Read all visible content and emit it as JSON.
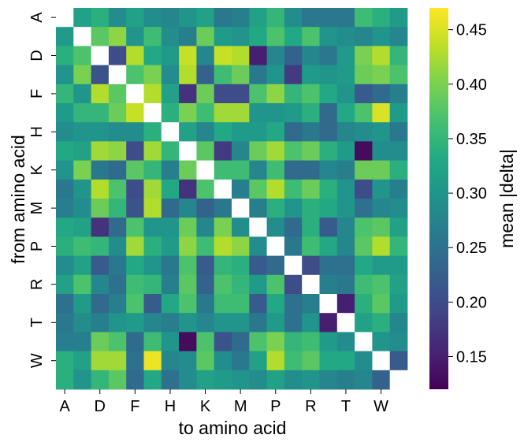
{
  "chart_data": {
    "type": "heatmap",
    "title": "",
    "xlabel": "to amino acid",
    "ylabel": "from amino acid",
    "colorbar_label": "mean |delta|",
    "colormap": "viridis",
    "amino_acids": [
      "A",
      "C",
      "D",
      "E",
      "F",
      "G",
      "H",
      "I",
      "K",
      "L",
      "M",
      "N",
      "P",
      "Q",
      "R",
      "S",
      "T",
      "V",
      "W",
      "Y"
    ],
    "x_tick_labels": [
      "A",
      "D",
      "F",
      "H",
      "K",
      "M",
      "P",
      "R",
      "T",
      "W"
    ],
    "y_tick_labels": [
      "A",
      "D",
      "F",
      "H",
      "K",
      "M",
      "P",
      "R",
      "T",
      "W"
    ],
    "diagonal": "white (no value)",
    "vmin": 0.12,
    "vmax": 0.47,
    "colorbar_ticks": [
      "0.15",
      "0.20",
      "0.25",
      "0.30",
      "0.35",
      "0.40",
      "0.45"
    ],
    "matrix": [
      [
        null,
        0.32,
        0.34,
        0.29,
        0.32,
        0.29,
        0.28,
        0.3,
        0.32,
        0.26,
        0.27,
        0.32,
        0.35,
        0.29,
        0.26,
        0.26,
        0.26,
        0.36,
        0.34,
        0.31
      ],
      [
        0.31,
        null,
        0.38,
        0.41,
        0.3,
        0.36,
        0.29,
        0.27,
        0.39,
        0.31,
        0.3,
        0.33,
        0.37,
        0.33,
        0.37,
        0.3,
        0.29,
        0.28,
        0.3,
        0.28
      ],
      [
        0.34,
        0.37,
        null,
        0.2,
        0.43,
        0.33,
        0.31,
        0.44,
        0.28,
        0.44,
        0.43,
        0.15,
        0.28,
        0.23,
        0.28,
        0.26,
        0.31,
        0.4,
        0.43,
        0.35
      ],
      [
        0.3,
        0.4,
        0.21,
        null,
        0.37,
        0.4,
        0.29,
        0.43,
        0.23,
        0.36,
        0.39,
        0.26,
        0.3,
        0.18,
        0.31,
        0.3,
        0.31,
        0.39,
        0.4,
        0.37
      ],
      [
        0.35,
        0.3,
        0.43,
        0.38,
        null,
        0.43,
        0.32,
        0.17,
        0.39,
        0.2,
        0.2,
        0.37,
        0.41,
        0.35,
        0.37,
        0.33,
        0.3,
        0.22,
        0.24,
        0.27
      ],
      [
        0.31,
        0.35,
        0.35,
        0.39,
        0.44,
        null,
        0.34,
        0.4,
        0.36,
        0.42,
        0.42,
        0.3,
        0.3,
        0.31,
        0.34,
        0.24,
        0.33,
        0.37,
        0.45,
        0.31
      ],
      [
        0.29,
        0.3,
        0.3,
        0.29,
        0.29,
        0.34,
        null,
        0.32,
        0.28,
        0.33,
        0.31,
        0.31,
        0.33,
        0.24,
        0.26,
        0.24,
        0.28,
        0.29,
        0.3,
        0.26
      ],
      [
        0.33,
        0.32,
        0.42,
        0.41,
        0.2,
        0.42,
        0.35,
        null,
        0.38,
        0.18,
        0.28,
        0.39,
        0.42,
        0.37,
        0.39,
        0.34,
        0.31,
        0.13,
        0.29,
        0.29
      ],
      [
        0.3,
        0.4,
        0.26,
        0.24,
        0.38,
        0.35,
        0.27,
        0.39,
        null,
        0.36,
        0.36,
        0.28,
        0.36,
        0.24,
        0.24,
        0.28,
        0.27,
        0.39,
        0.39,
        0.34
      ],
      [
        0.26,
        0.3,
        0.43,
        0.37,
        0.2,
        0.42,
        0.33,
        0.17,
        0.37,
        null,
        0.27,
        0.38,
        0.43,
        0.36,
        0.39,
        0.34,
        0.3,
        0.2,
        0.3,
        0.27
      ],
      [
        0.27,
        0.29,
        0.39,
        0.35,
        0.21,
        0.43,
        0.24,
        0.28,
        0.23,
        0.26,
        null,
        0.27,
        0.34,
        0.3,
        0.34,
        0.33,
        0.3,
        0.25,
        0.28,
        0.29
      ],
      [
        0.33,
        0.32,
        0.17,
        0.24,
        0.37,
        0.3,
        0.3,
        0.39,
        0.28,
        0.4,
        0.29,
        null,
        0.29,
        0.24,
        0.34,
        0.22,
        0.28,
        0.37,
        0.38,
        0.32
      ],
      [
        0.34,
        0.36,
        0.35,
        0.29,
        0.42,
        0.34,
        0.31,
        0.41,
        0.36,
        0.43,
        0.41,
        0.29,
        null,
        0.26,
        0.36,
        0.33,
        0.28,
        0.38,
        0.43,
        0.35
      ],
      [
        0.29,
        0.32,
        0.22,
        0.26,
        0.33,
        0.3,
        0.26,
        0.37,
        0.22,
        0.35,
        0.34,
        0.22,
        0.24,
        null,
        0.2,
        0.25,
        0.25,
        0.33,
        0.31,
        0.31
      ],
      [
        0.32,
        0.37,
        0.28,
        0.25,
        0.36,
        0.35,
        0.27,
        0.38,
        0.23,
        0.37,
        0.35,
        0.31,
        0.37,
        0.2,
        null,
        0.27,
        0.26,
        0.36,
        0.37,
        0.32
      ],
      [
        0.25,
        0.31,
        0.24,
        0.27,
        0.37,
        0.22,
        0.33,
        0.37,
        0.26,
        0.36,
        0.36,
        0.22,
        0.33,
        0.25,
        0.27,
        null,
        0.15,
        0.34,
        0.38,
        0.31
      ],
      [
        0.26,
        0.29,
        0.27,
        0.3,
        0.31,
        0.28,
        0.27,
        0.3,
        0.28,
        0.3,
        0.3,
        0.26,
        0.31,
        0.25,
        0.3,
        0.15,
        null,
        0.32,
        0.34,
        0.28
      ],
      [
        0.27,
        0.27,
        0.39,
        0.37,
        0.24,
        0.36,
        0.3,
        0.13,
        0.37,
        0.21,
        0.24,
        0.37,
        0.4,
        0.35,
        0.36,
        0.31,
        0.29,
        null,
        0.3,
        0.29
      ],
      [
        0.34,
        0.32,
        0.42,
        0.42,
        0.25,
        0.46,
        0.28,
        0.29,
        0.38,
        0.29,
        0.26,
        0.32,
        0.43,
        0.36,
        0.38,
        0.33,
        0.33,
        0.29,
        null,
        0.22
      ],
      [
        0.34,
        0.3,
        0.35,
        0.38,
        0.24,
        0.33,
        0.25,
        0.29,
        0.32,
        0.31,
        0.3,
        0.29,
        0.32,
        0.29,
        0.3,
        0.28,
        0.27,
        0.28,
        0.23,
        null
      ]
    ]
  }
}
